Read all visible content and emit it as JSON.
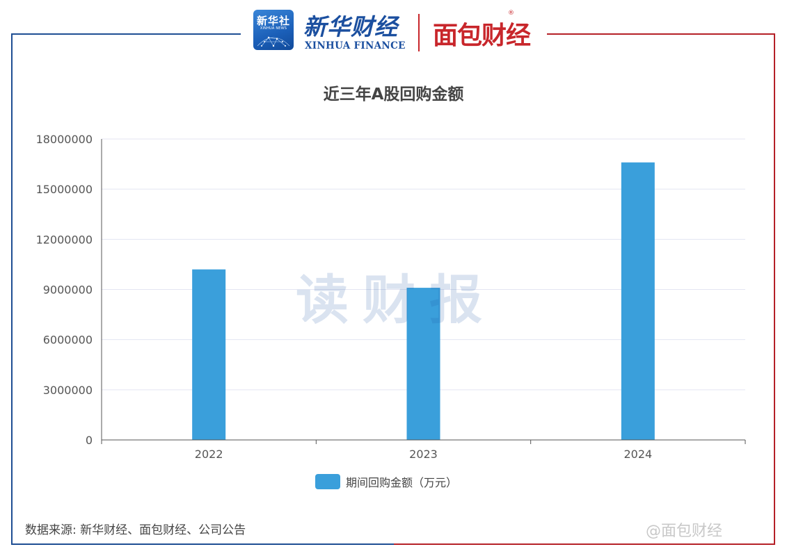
{
  "header": {
    "logo_xinhua_cn": "新华社",
    "logo_xinhua_en": "XINHUA NEWS",
    "logo_xinhua_finance_cn": "新华财经",
    "logo_xinhua_finance_en": "XINHUA FINANCE",
    "logo_mianbao": "面包财经",
    "logo_mianbao_mark": "®"
  },
  "watermark": "读财报",
  "footer": {
    "source": "数据来源: 新华财经、面包财经、公司公告",
    "corner_mark": "@面包财经"
  },
  "colors": {
    "bar": "#3a9fdb",
    "frame_left": "#1e4e93",
    "frame_right": "#b52027",
    "brand_red": "#c8262b",
    "brand_blue": "#1b4f9f"
  },
  "chart_data": {
    "type": "bar",
    "title": "近三年A股回购金额",
    "categories": [
      "2022",
      "2023",
      "2024"
    ],
    "series": [
      {
        "name": "期间回购金额（万元）",
        "values": [
          10200000,
          9100000,
          16600000
        ]
      }
    ],
    "yticks": [
      "0",
      "3000000",
      "6000000",
      "9000000",
      "12000000",
      "15000000",
      "18000000"
    ],
    "ylim": [
      0,
      18000000
    ],
    "grid": true,
    "legend": "bottom-center"
  }
}
